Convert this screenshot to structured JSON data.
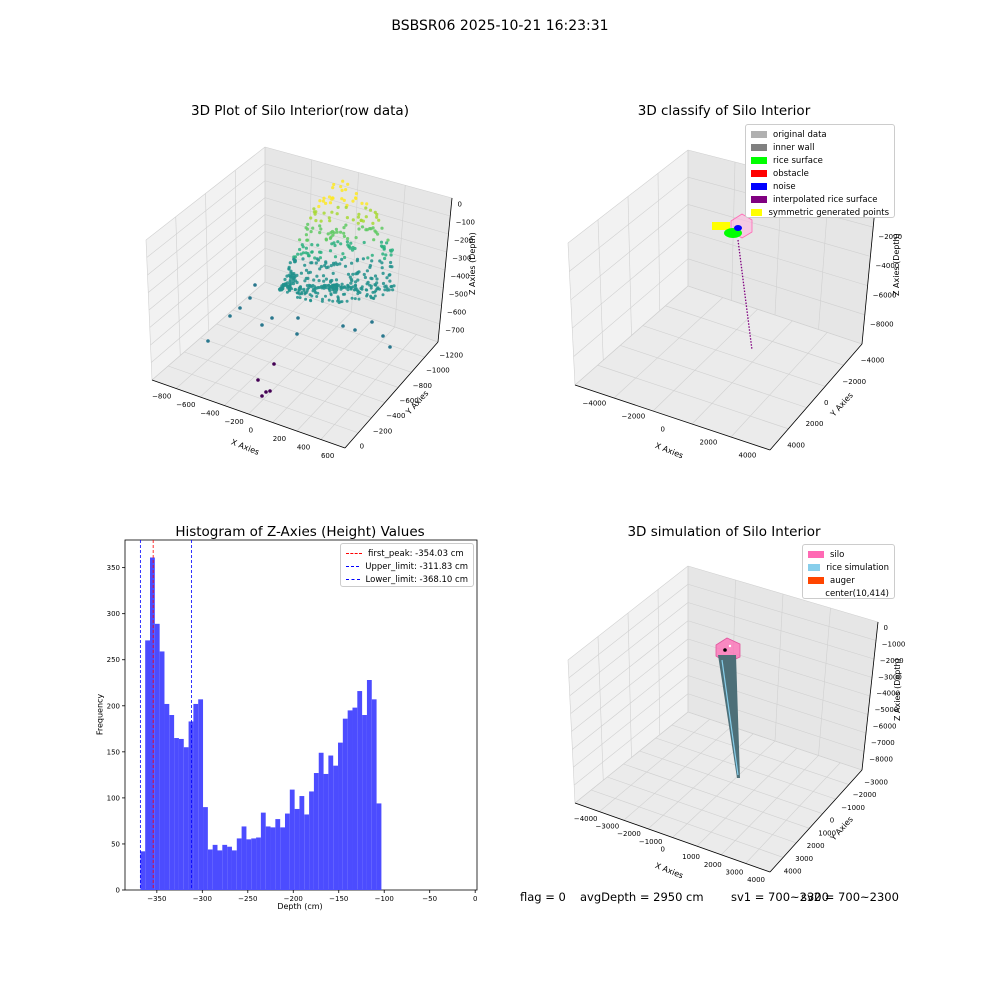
{
  "figure": {
    "suptitle": "BSBSR06 2025-10-21 16:23:31",
    "status": {
      "flag": "flag = 0",
      "avg": "avgDepth = 2950 cm",
      "sv1": "sv1 = 700~2300",
      "sv2": "sv2 = 700~2300"
    }
  },
  "chart_data": [
    {
      "type": "scatter",
      "title": "3D Plot of Silo Interior(row data)",
      "xlabel": "X Axies",
      "ylabel": "Y Axies",
      "zlabel": "Z Axies (Depth)",
      "x_ticks": [
        "−800",
        "−600",
        "−400",
        "−200",
        "0",
        "200",
        "400",
        "600"
      ],
      "y_ticks": [
        "0",
        "−200",
        "−400",
        "−600",
        "−800",
        "−1000",
        "−1200"
      ],
      "z_ticks": [
        "0",
        "−100",
        "−200",
        "−300",
        "−400",
        "−500",
        "−600",
        "−700"
      ],
      "grid": true,
      "colormap": "viridis"
    },
    {
      "type": "scatter",
      "title": "3D classify of Silo Interior",
      "xlabel": "X Axies",
      "ylabel": "Y Axies",
      "zlabel": "Z Axies (Depth)",
      "x_ticks": [
        "−4000",
        "−2000",
        "0",
        "2000",
        "4000"
      ],
      "y_ticks": [
        "4000",
        "2000",
        "0",
        "−2000",
        "−4000"
      ],
      "z_ticks": [
        "0",
        "−2000",
        "−4000",
        "−6000",
        "−8000"
      ],
      "legend_position": "top-right",
      "legend": [
        {
          "label": "original data",
          "color": "#b0b0b0"
        },
        {
          "label": "inner wall",
          "color": "#808080"
        },
        {
          "label": "rice surface",
          "color": "#00ff00"
        },
        {
          "label": "obstacle",
          "color": "#ff0000"
        },
        {
          "label": "noise",
          "color": "#0000ff"
        },
        {
          "label": "interpolated rice surface",
          "color": "#800080"
        },
        {
          "label": "symmetric generated points",
          "color": "#ffff00"
        }
      ]
    },
    {
      "type": "bar",
      "title": "Histogram of Z-Axies (Height) Values",
      "xlabel": "Depth (cm)",
      "ylabel": "Frequency",
      "xlim": [
        -385,
        2
      ],
      "ylim": [
        0,
        380
      ],
      "x_ticks": [
        -350,
        -300,
        -250,
        -200,
        -150,
        -100,
        -50,
        0
      ],
      "y_ticks": [
        0,
        50,
        100,
        150,
        200,
        250,
        300,
        350
      ],
      "bar_color": "#4c4cff",
      "bin_width": 5.3,
      "bin_start": -368.1,
      "values": [
        42,
        271,
        361,
        289,
        259,
        202,
        190,
        165,
        164,
        155,
        183,
        202,
        207,
        90,
        44,
        49,
        43,
        49,
        47,
        43,
        56,
        69,
        55,
        56,
        57,
        84,
        69,
        68,
        77,
        68,
        83,
        109,
        88,
        102,
        82,
        107,
        127,
        149,
        126,
        146,
        135,
        160,
        186,
        195,
        198,
        216,
        190,
        228,
        207,
        94
      ],
      "vlines": [
        {
          "x": -354.03,
          "label": "first_peak: -354.03 cm",
          "color": "#ff0000"
        },
        {
          "x": -311.83,
          "label": "Upper_limit: -311.83 cm",
          "color": "#0000ff"
        },
        {
          "x": -368.1,
          "label": "Lower_limit: -368.10 cm",
          "color": "#0000ff"
        }
      ],
      "legend_position": "top-right"
    },
    {
      "type": "scatter",
      "title": "3D simulation of Silo Interior",
      "xlabel": "X Axies",
      "ylabel": "Y Axies",
      "zlabel": "Z Axies (Depth)",
      "x_ticks": [
        "−4000",
        "−3000",
        "−2000",
        "−1000",
        "0",
        "1000",
        "2000",
        "3000",
        "4000"
      ],
      "y_ticks": [
        "4000",
        "3000",
        "2000",
        "1000",
        "0",
        "−1000",
        "−2000",
        "−3000"
      ],
      "z_ticks": [
        "0",
        "−1000",
        "−2000",
        "−3000",
        "−4000",
        "−5000",
        "−6000",
        "−7000",
        "−8000"
      ],
      "legend_position": "top-right",
      "legend": [
        {
          "label": "silo",
          "color": "#ff69b4"
        },
        {
          "label": "rice simulation",
          "color": "#87ceeb"
        },
        {
          "label": "auger",
          "color": "#ff4500"
        },
        {
          "label": "center(10,414)",
          "color": ""
        }
      ]
    }
  ]
}
